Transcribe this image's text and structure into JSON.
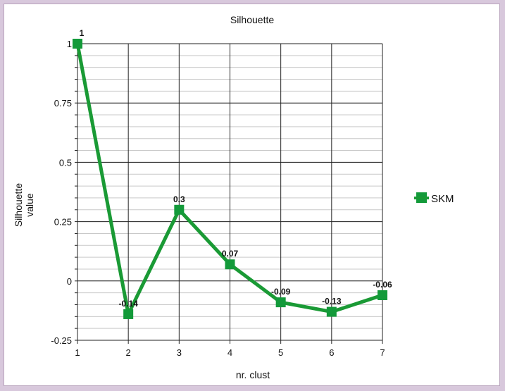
{
  "chart_data": {
    "type": "line",
    "title": "Silhouette",
    "xlabel": "nr. clust",
    "ylabel_lines": [
      "Silhouette",
      "value"
    ],
    "x": [
      1,
      2,
      3,
      4,
      5,
      6,
      7
    ],
    "xlim": [
      1,
      7
    ],
    "ylim": [
      -0.25,
      1
    ],
    "yticks": [
      -0.25,
      0,
      0.25,
      0.5,
      0.75,
      1
    ],
    "y_tick_labels": [
      "-0.25",
      "0",
      "0.25",
      "0.5",
      "0.75",
      "1"
    ],
    "y_minor_step": 0.05,
    "grid": true,
    "legend_position": "right",
    "series": [
      {
        "name": "SKM",
        "color": "#1a9a35",
        "marker_color": "#139a3a",
        "values": [
          1,
          -0.14,
          0.3,
          0.07,
          -0.09,
          -0.13,
          -0.06
        ],
        "value_labels": [
          "1",
          "-0.14",
          "0.3",
          "0.07",
          "-0.09",
          "-0.13",
          "-0.06"
        ]
      }
    ]
  }
}
